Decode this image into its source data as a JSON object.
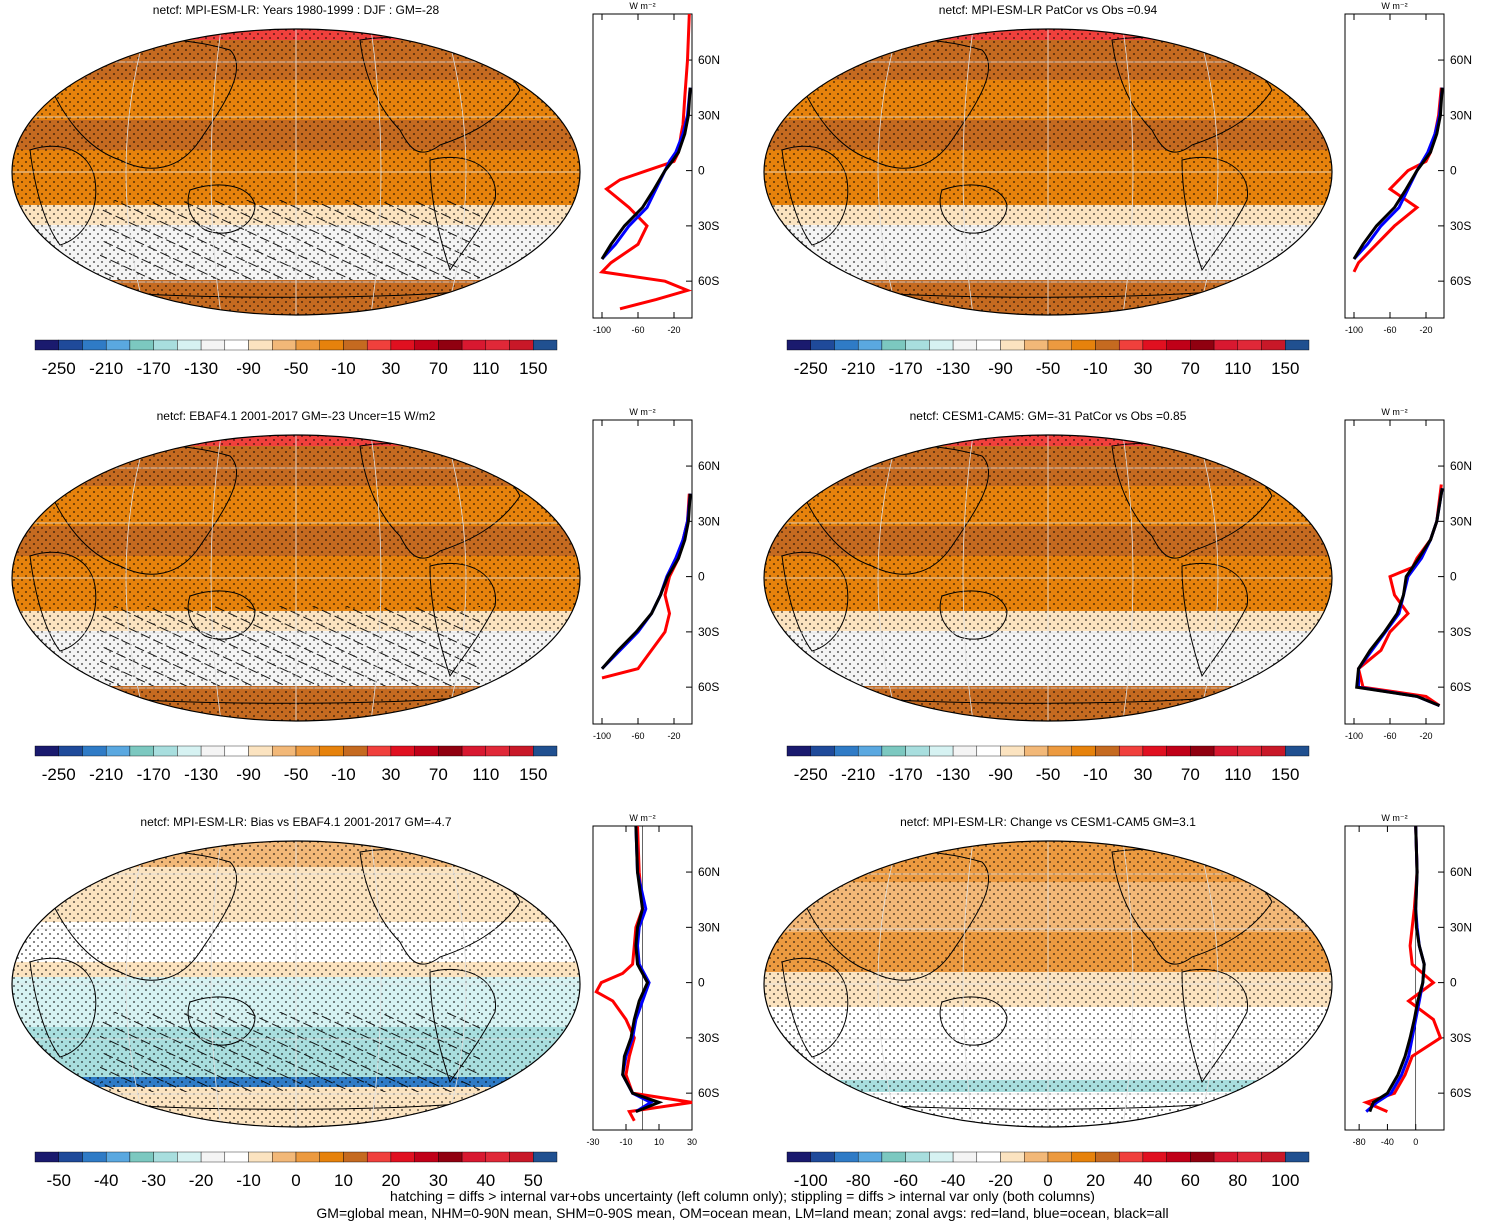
{
  "footer": {
    "line1": "hatching = diffs > internal var+obs uncertainty (left column only); stippling = diffs > internal var only (both columns)",
    "line2": "GM=global mean, NHM=0-90N mean, SHM=0-90S mean, OM=ocean mean, LM=land mean; zonal avgs: red=land, blue=ocean, black=all"
  },
  "colors": {
    "land_line": "#ff0000",
    "ocean_line": "#0000ff",
    "all_line": "#000000",
    "colormap": [
      "#1a1a6e",
      "#1f4a9a",
      "#2f7bc6",
      "#5aa8e0",
      "#7cc8c0",
      "#a8dede",
      "#d6f2f2",
      "#f4f4f4",
      "#ffffff",
      "#fbe3c0",
      "#f2b878",
      "#ec9a40",
      "#e6820c",
      "#c56a20",
      "#f0403c",
      "#e01020",
      "#c00018",
      "#900010",
      "#d81830",
      "#e02838",
      "#c81828",
      "#205090"
    ]
  },
  "chart_data": [
    {
      "type": "heatmap",
      "title": "netcf: MPI-ESM-LR: Years 1980-1999 : DJF : GM=-28",
      "colorbar_labels": [
        "-250",
        "-210",
        "-170",
        "-130",
        "-90",
        "-50",
        "-10",
        "30",
        "70",
        "110",
        "150"
      ],
      "zonal": {
        "type": "line",
        "y_tick_labels": [
          "60N",
          "30N",
          "0",
          "30S",
          "60S"
        ],
        "y_values": [
          60,
          30,
          0,
          -30,
          -60
        ],
        "ylim": [
          -80,
          85
        ],
        "x_tick_labels": [
          "-100",
          "-60",
          "-20"
        ],
        "xlim": [
          -110,
          0
        ],
        "unit": "W m⁻²",
        "series": [
          {
            "name": "red=land",
            "lat": [
              85,
              60,
              40,
              25,
              20,
              10,
              5,
              0,
              -5,
              -10,
              -20,
              -30,
              -40,
              -50,
              -55,
              -60,
              -65,
              -70,
              -75
            ],
            "values": [
              -3,
              -5,
              -8,
              -10,
              -12,
              -15,
              -20,
              -50,
              -80,
              -95,
              -70,
              -50,
              -60,
              -90,
              -100,
              -30,
              -5,
              -40,
              -80
            ]
          },
          {
            "name": "blue=ocean",
            "lat": [
              45,
              30,
              20,
              10,
              5,
              0,
              -10,
              -20,
              -30,
              -40,
              -48
            ],
            "values": [
              -2,
              -5,
              -10,
              -18,
              -25,
              -30,
              -40,
              -50,
              -70,
              -85,
              -100
            ]
          },
          {
            "name": "black=all",
            "lat": [
              45,
              30,
              20,
              10,
              5,
              0,
              -10,
              -20,
              -30,
              -40,
              -48
            ],
            "values": [
              -2,
              -4,
              -8,
              -15,
              -22,
              -30,
              -42,
              -55,
              -75,
              -90,
              -100
            ]
          }
        ]
      }
    },
    {
      "type": "heatmap",
      "title": "netcf: MPI-ESM-LR PatCor vs Obs =0.94",
      "colorbar_labels": [
        "-250",
        "-210",
        "-170",
        "-130",
        "-90",
        "-50",
        "-10",
        "30",
        "70",
        "110",
        "150"
      ],
      "zonal": {
        "type": "line",
        "y_tick_labels": [
          "60N",
          "30N",
          "0",
          "30S",
          "60S"
        ],
        "y_values": [
          60,
          30,
          0,
          -30,
          -60
        ],
        "ylim": [
          -80,
          85
        ],
        "x_tick_labels": [
          "-100",
          "-60",
          "-20"
        ],
        "xlim": [
          -110,
          0
        ],
        "unit": "W m⁻²",
        "series": [
          {
            "name": "red=land",
            "lat": [
              45,
              30,
              20,
              10,
              5,
              0,
              -10,
              -20,
              -30,
              -40,
              -50,
              -55
            ],
            "values": [
              -3,
              -6,
              -10,
              -15,
              -20,
              -40,
              -60,
              -30,
              -55,
              -75,
              -95,
              -100
            ]
          },
          {
            "name": "blue=ocean",
            "lat": [
              45,
              30,
              20,
              10,
              0,
              -10,
              -20,
              -30,
              -40,
              -48
            ],
            "values": [
              -2,
              -5,
              -10,
              -18,
              -30,
              -40,
              -50,
              -70,
              -85,
              -100
            ]
          },
          {
            "name": "black=all",
            "lat": [
              45,
              30,
              20,
              10,
              0,
              -10,
              -20,
              -30,
              -40,
              -48
            ],
            "values": [
              -2,
              -4,
              -8,
              -15,
              -30,
              -42,
              -55,
              -75,
              -90,
              -100
            ]
          }
        ]
      }
    },
    {
      "type": "heatmap",
      "title": "netcf: EBAF4.1 2001-2017 GM=-23 Uncer=15 W/m2",
      "colorbar_labels": [
        "-250",
        "-210",
        "-170",
        "-130",
        "-90",
        "-50",
        "-10",
        "30",
        "70",
        "110",
        "150"
      ],
      "zonal": {
        "type": "line",
        "y_tick_labels": [
          "60N",
          "30N",
          "0",
          "30S",
          "60S"
        ],
        "y_values": [
          60,
          30,
          0,
          -30,
          -60
        ],
        "ylim": [
          -80,
          85
        ],
        "x_tick_labels": [
          "-100",
          "-60",
          "-20"
        ],
        "xlim": [
          -110,
          0
        ],
        "unit": "W m⁻²",
        "series": [
          {
            "name": "red=land",
            "lat": [
              45,
              30,
              20,
              10,
              0,
              -10,
              -20,
              -30,
              -40,
              -50,
              -55
            ],
            "values": [
              -3,
              -5,
              -10,
              -15,
              -25,
              -30,
              -25,
              -30,
              -45,
              -60,
              -100
            ]
          },
          {
            "name": "blue=ocean",
            "lat": [
              45,
              30,
              20,
              10,
              0,
              -10,
              -20,
              -30,
              -40,
              -50
            ],
            "values": [
              -2,
              -5,
              -10,
              -18,
              -28,
              -35,
              -45,
              -60,
              -80,
              -100
            ]
          },
          {
            "name": "black=all",
            "lat": [
              45,
              30,
              20,
              10,
              0,
              -10,
              -20,
              -30,
              -40,
              -50
            ],
            "values": [
              -2,
              -4,
              -8,
              -15,
              -27,
              -35,
              -45,
              -62,
              -82,
              -100
            ]
          }
        ]
      }
    },
    {
      "type": "heatmap",
      "title": "netcf: CESM1-CAM5: GM=-31 PatCor vs Obs =0.85",
      "colorbar_labels": [
        "-250",
        "-210",
        "-170",
        "-130",
        "-90",
        "-50",
        "-10",
        "30",
        "70",
        "110",
        "150"
      ],
      "zonal": {
        "type": "line",
        "y_tick_labels": [
          "60N",
          "30N",
          "0",
          "30S",
          "60S"
        ],
        "y_values": [
          60,
          30,
          0,
          -30,
          -60
        ],
        "ylim": [
          -80,
          85
        ],
        "x_tick_labels": [
          "-100",
          "-60",
          "-20"
        ],
        "xlim": [
          -110,
          0
        ],
        "unit": "W m⁻²",
        "series": [
          {
            "name": "red=land",
            "lat": [
              50,
              30,
              20,
              10,
              5,
              0,
              -10,
              -20,
              -30,
              -40,
              -50,
              -60,
              -65,
              -70
            ],
            "values": [
              -3,
              -8,
              -15,
              -30,
              -35,
              -60,
              -55,
              -40,
              -60,
              -70,
              -95,
              -90,
              -20,
              -5
            ]
          },
          {
            "name": "blue=ocean",
            "lat": [
              48,
              30,
              20,
              10,
              0,
              -10,
              -20,
              -30,
              -40,
              -50,
              -60,
              -65,
              -70
            ],
            "values": [
              -2,
              -8,
              -15,
              -25,
              -40,
              -45,
              -50,
              -65,
              -80,
              -95,
              -95,
              -30,
              -5
            ]
          },
          {
            "name": "black=all",
            "lat": [
              48,
              30,
              20,
              10,
              0,
              -10,
              -20,
              -30,
              -40,
              -50,
              -60,
              -65,
              -70
            ],
            "values": [
              -2,
              -8,
              -15,
              -28,
              -42,
              -45,
              -52,
              -66,
              -82,
              -95,
              -97,
              -30,
              -5
            ]
          }
        ]
      }
    },
    {
      "type": "heatmap",
      "title": "netcf: MPI-ESM-LR: Bias vs EBAF4.1 2001-2017 GM=-4.7",
      "colorbar_labels": [
        "-50",
        "-40",
        "-30",
        "-20",
        "-10",
        "0",
        "10",
        "20",
        "30",
        "40",
        "50"
      ],
      "zonal": {
        "type": "line",
        "y_tick_labels": [
          "60N",
          "30N",
          "0",
          "30S",
          "60S"
        ],
        "y_values": [
          60,
          30,
          0,
          -30,
          -60
        ],
        "ylim": [
          -80,
          85
        ],
        "x_tick_labels": [
          "-30",
          "-10",
          "10",
          "30"
        ],
        "xlim": [
          -30,
          30
        ],
        "unit": "W m⁻²",
        "series": [
          {
            "name": "red=land",
            "lat": [
              85,
              60,
              40,
              30,
              20,
              10,
              5,
              0,
              -5,
              -10,
              -20,
              -30,
              -40,
              -50,
              -60,
              -65,
              -70,
              -75
            ],
            "values": [
              -3,
              -2,
              0,
              -4,
              -5,
              -6,
              -12,
              -25,
              -28,
              -18,
              -10,
              -5,
              -8,
              -10,
              -6,
              30,
              -8,
              -5
            ]
          },
          {
            "name": "blue=ocean",
            "lat": [
              85,
              60,
              40,
              30,
              20,
              10,
              0,
              -10,
              -20,
              -30,
              -40,
              -50,
              -60,
              -65,
              -70
            ],
            "values": [
              -4,
              -3,
              2,
              -2,
              -3,
              -2,
              4,
              0,
              -4,
              -6,
              -10,
              -12,
              -6,
              5,
              -4
            ]
          },
          {
            "name": "black=all",
            "lat": [
              85,
              60,
              40,
              30,
              20,
              10,
              0,
              -10,
              -20,
              -30,
              -40,
              -50,
              -60,
              -65,
              -70
            ],
            "values": [
              -4,
              -3,
              0,
              -3,
              -4,
              -3,
              3,
              -2,
              -5,
              -7,
              -11,
              -12,
              -6,
              10,
              -4
            ]
          }
        ]
      }
    },
    {
      "type": "heatmap",
      "title": "netcf: MPI-ESM-LR: Change vs CESM1-CAM5 GM=3.1",
      "colorbar_labels": [
        "-100",
        "-80",
        "-60",
        "-40",
        "-20",
        "0",
        "20",
        "40",
        "60",
        "80",
        "100"
      ],
      "zonal": {
        "type": "line",
        "y_tick_labels": [
          "60N",
          "30N",
          "0",
          "30S",
          "60S"
        ],
        "y_values": [
          60,
          30,
          0,
          -30,
          -60
        ],
        "ylim": [
          -80,
          85
        ],
        "x_tick_labels": [
          "-80",
          "-40",
          "0"
        ],
        "xlim": [
          -100,
          40
        ],
        "unit": "W m⁻²",
        "series": [
          {
            "name": "red=land",
            "lat": [
              85,
              60,
              40,
              30,
              20,
              10,
              5,
              0,
              -10,
              -20,
              -30,
              -40,
              -50,
              -60,
              -65,
              -70
            ],
            "values": [
              0,
              2,
              -2,
              -5,
              -8,
              -5,
              10,
              25,
              -10,
              25,
              35,
              -5,
              -15,
              -30,
              -70,
              -40
            ]
          },
          {
            "name": "blue=ocean",
            "lat": [
              85,
              60,
              40,
              30,
              20,
              10,
              0,
              -10,
              -20,
              -30,
              -40,
              -50,
              -60,
              -65,
              -70
            ],
            "values": [
              0,
              2,
              0,
              2,
              5,
              12,
              10,
              5,
              0,
              -5,
              -10,
              -20,
              -35,
              -55,
              -70
            ]
          },
          {
            "name": "black=all",
            "lat": [
              85,
              60,
              40,
              30,
              20,
              10,
              0,
              -10,
              -20,
              -30,
              -40,
              -50,
              -60,
              -65,
              -70
            ],
            "values": [
              0,
              2,
              0,
              1,
              5,
              12,
              10,
              3,
              -2,
              -8,
              -15,
              -25,
              -40,
              -60,
              -65
            ]
          }
        ]
      }
    }
  ]
}
